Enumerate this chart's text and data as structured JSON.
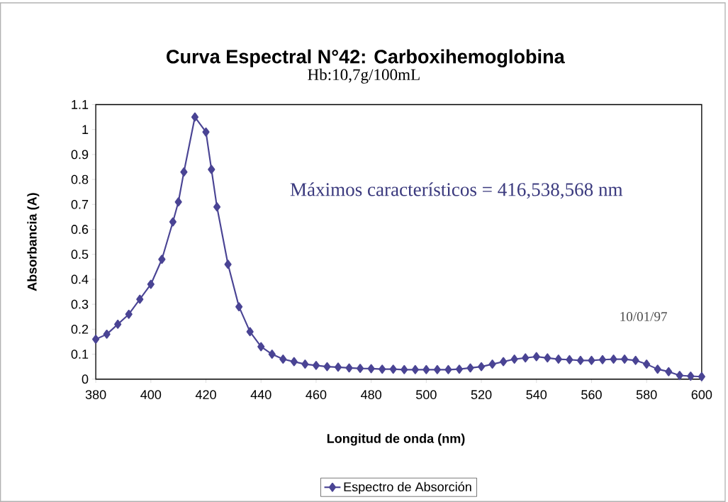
{
  "chart_data": {
    "type": "line",
    "title": "Curva Espectral N°42: Carboxihemoglobina",
    "subtitle": "Hb:10,7g/100mL",
    "xlabel": "Longitud de onda (nm)",
    "ylabel": "Absorbancia (A)",
    "annotations": [
      "Máximos característicos = 416,538,568 nm",
      "10/01/97"
    ],
    "xlim": [
      380,
      600
    ],
    "xticks": [
      380,
      400,
      420,
      440,
      460,
      480,
      500,
      520,
      540,
      560,
      580,
      600
    ],
    "ylim": [
      0,
      1.1
    ],
    "yticks": [
      0,
      0.1,
      0.2,
      0.3,
      0.4,
      0.5,
      0.6,
      0.7,
      0.8,
      0.9,
      1,
      1.1
    ],
    "grid": false,
    "legend": "bottom",
    "marker": "diamond",
    "line_style": "solid",
    "series": [
      {
        "name": "Espectro de Absorción",
        "color": "#4a4494",
        "x": [
          380,
          384,
          388,
          392,
          396,
          400,
          404,
          408,
          410,
          412,
          416,
          420,
          422,
          424,
          428,
          432,
          436,
          440,
          444,
          448,
          452,
          456,
          460,
          464,
          468,
          472,
          476,
          480,
          484,
          488,
          492,
          496,
          500,
          504,
          508,
          512,
          516,
          520,
          524,
          528,
          532,
          536,
          540,
          544,
          548,
          552,
          556,
          560,
          564,
          568,
          572,
          576,
          580,
          584,
          588,
          592,
          596,
          600
        ],
        "values": [
          0.16,
          0.18,
          0.22,
          0.26,
          0.32,
          0.38,
          0.48,
          0.63,
          0.71,
          0.83,
          1.05,
          0.99,
          0.84,
          0.69,
          0.46,
          0.29,
          0.19,
          0.13,
          0.1,
          0.08,
          0.07,
          0.06,
          0.055,
          0.05,
          0.048,
          0.045,
          0.043,
          0.042,
          0.04,
          0.04,
          0.038,
          0.038,
          0.038,
          0.038,
          0.038,
          0.04,
          0.045,
          0.05,
          0.06,
          0.07,
          0.08,
          0.085,
          0.09,
          0.085,
          0.08,
          0.078,
          0.075,
          0.075,
          0.078,
          0.08,
          0.08,
          0.075,
          0.06,
          0.04,
          0.03,
          0.015,
          0.012,
          0.01
        ]
      }
    ]
  }
}
